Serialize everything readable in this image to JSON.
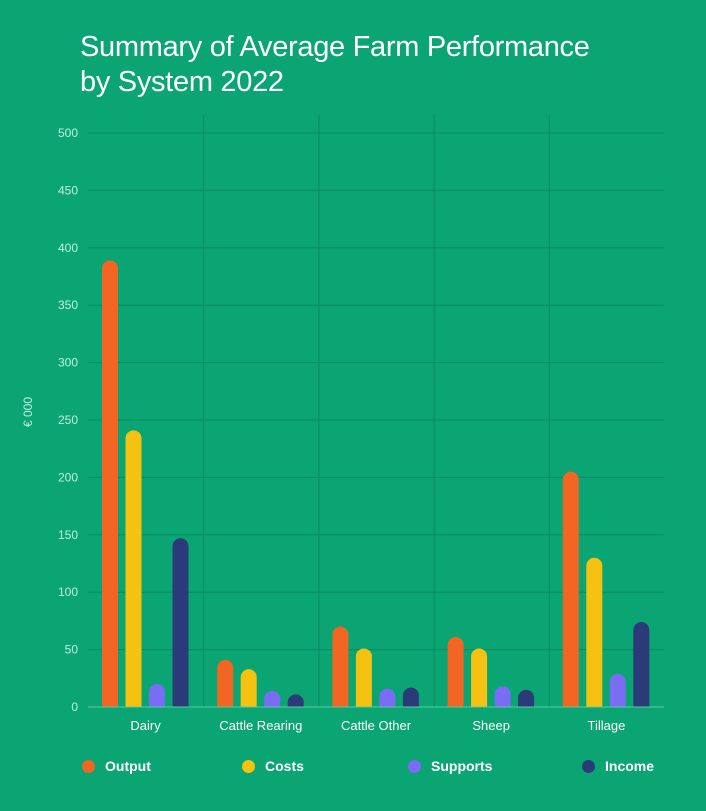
{
  "chart_data": {
    "type": "bar",
    "title_lines": [
      "Summary of Average Farm Performance",
      "by System 2022"
    ],
    "ylabel": "€ 000",
    "xlabel": "",
    "ylim": [
      0,
      500
    ],
    "yticks": [
      0,
      50,
      100,
      150,
      200,
      250,
      300,
      350,
      400,
      450,
      500
    ],
    "grid": true,
    "legend_position": "bottom",
    "categories": [
      "Dairy",
      "Cattle Rearing",
      "Cattle Other",
      "Sheep",
      "Tillage"
    ],
    "series": [
      {
        "name": "Output",
        "color": "#f26522",
        "values": [
          389,
          41,
          70,
          61,
          205
        ]
      },
      {
        "name": "Costs",
        "color": "#f5c211",
        "values": [
          241,
          33,
          51,
          51,
          130
        ]
      },
      {
        "name": "Supports",
        "color": "#7b6cf6",
        "values": [
          20,
          14,
          16,
          18,
          29
        ]
      },
      {
        "name": "Income",
        "color": "#2b3a78",
        "values": [
          147,
          8,
          17,
          15,
          74
        ]
      }
    ]
  }
}
